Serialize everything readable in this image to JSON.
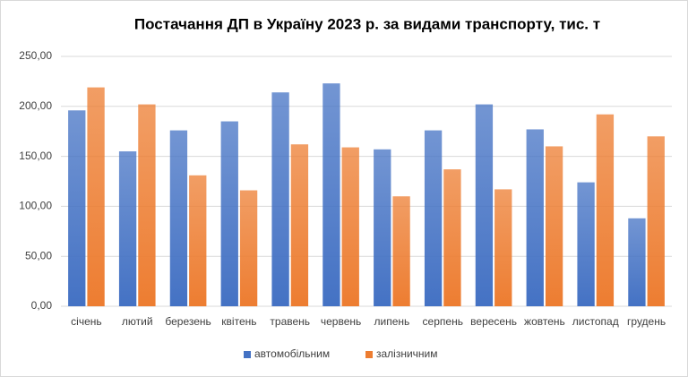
{
  "chart_data": {
    "type": "bar",
    "title": "Постачання ДП в Україну 2023 р. за видами транспорту,  тис. т",
    "categories": [
      "січень",
      "лютий",
      "березень",
      "квітень",
      "травень",
      "червень",
      "липень",
      "серпень",
      "вересень",
      "жовтень",
      "листопад",
      "грудень"
    ],
    "series": [
      {
        "name": "автомобільним",
        "color": "#4472c4",
        "values": [
          196,
          155,
          176,
          185,
          214,
          223,
          157,
          176,
          202,
          177,
          124,
          88
        ]
      },
      {
        "name": "залізничним",
        "color": "#ed7d31",
        "values": [
          219,
          202,
          131,
          116,
          162,
          159,
          110,
          137,
          117,
          160,
          192,
          170
        ]
      }
    ],
    "ylim": [
      0,
      250
    ],
    "yticks": [
      {
        "value": 0,
        "label": "0,00"
      },
      {
        "value": 50,
        "label": "50,00"
      },
      {
        "value": 100,
        "label": "100,00"
      },
      {
        "value": 150,
        "label": "150,00"
      },
      {
        "value": 200,
        "label": "200,00"
      },
      {
        "value": 250,
        "label": "250,00"
      }
    ],
    "grid": true,
    "legend": "bottom"
  }
}
